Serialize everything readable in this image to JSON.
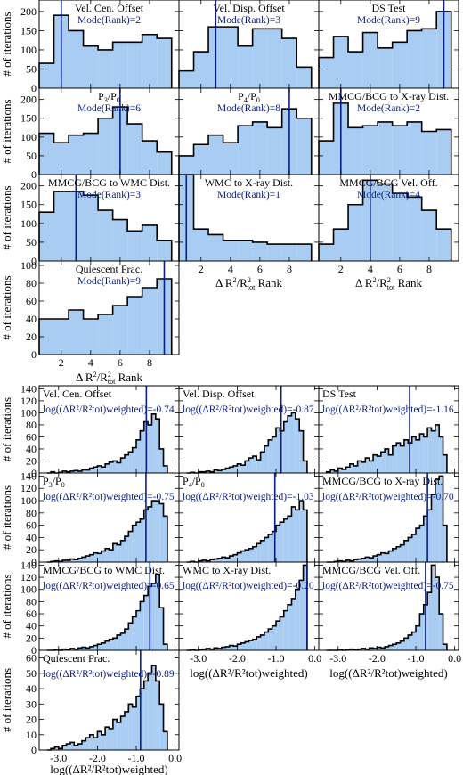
{
  "chart_data": {
    "type": "bar",
    "colors": {
      "fill": "#a9ccf2",
      "edge": "#000000",
      "marker": "#0b1f86"
    },
    "rank_figure": {
      "ylabel": "# of iterations",
      "xlabel": "Δ R²/R²tot Rank",
      "xlim": [
        0.5,
        10
      ],
      "xticks": [
        2,
        4,
        6,
        8
      ],
      "yticks": [
        0,
        50,
        100,
        150,
        200
      ],
      "ylim": [
        0,
        230
      ],
      "last_ylim": [
        0,
        105
      ],
      "last_yticks": [
        0,
        20,
        40,
        60,
        80,
        100
      ],
      "panels": [
        {
          "title": "Vel. Cen. Offset",
          "stat": "Mode(Rank)=2",
          "mode": 2,
          "values": [
            65,
            190,
            150,
            110,
            100,
            120,
            120,
            140,
            130
          ]
        },
        {
          "title": "Vel. Disp. Offset",
          "stat": "Mode(Rank)=3",
          "mode": 3,
          "values": [
            45,
            95,
            160,
            160,
            110,
            155,
            155,
            130,
            55
          ]
        },
        {
          "title": "DS Test",
          "stat": "Mode(Rank)=9",
          "mode": 9,
          "values": [
            80,
            135,
            95,
            145,
            105,
            120,
            150,
            155,
            200
          ]
        },
        {
          "title": "P3/P0",
          "stat": "Mode(Rank)=6",
          "mode": 6,
          "values": [
            110,
            85,
            105,
            110,
            150,
            180,
            135,
            90,
            60
          ]
        },
        {
          "title": "P4/P0",
          "stat": "Mode(Rank)=8",
          "mode": 8,
          "values": [
            50,
            80,
            105,
            85,
            130,
            140,
            125,
            175,
            150
          ]
        },
        {
          "title": "MMCG/BCG to X-ray Dist.",
          "stat": "Mode(Rank)=2",
          "mode": 2,
          "values": [
            90,
            190,
            125,
            130,
            140,
            130,
            140,
            115,
            120
          ]
        },
        {
          "title": "MMCG/BCG to WMC Dist.",
          "stat": "Mode(Rank)=3",
          "mode": 3,
          "values": [
            130,
            185,
            185,
            175,
            135,
            110,
            80,
            95,
            55
          ]
        },
        {
          "title": "WMC to X-ray Dist.",
          "stat": "Mode(Rank)=1",
          "mode": 1,
          "values": [
            235,
            85,
            70,
            55,
            55,
            50,
            45,
            45,
            45
          ]
        },
        {
          "title": "MMCG/BCG Vel. Off.",
          "stat": "Mode(Rank)=4",
          "mode": 4,
          "values": [
            45,
            85,
            150,
            215,
            205,
            180,
            170,
            135,
            85
          ]
        },
        {
          "title": "Quiescent Frac.",
          "stat": "Mode(Rank)=9",
          "mode": 9,
          "values": [
            40,
            40,
            50,
            40,
            45,
            55,
            65,
            75,
            85
          ]
        }
      ]
    },
    "weighted_figure": {
      "ylabel": "# of iterations",
      "xlabel": "log((ΔR²/R²tot)weighted)",
      "stat_prefix": "log((ΔR²/R²tot)weighted)=",
      "xlim": [
        -3.5,
        0.1
      ],
      "xticks": [
        -3.0,
        -2.0,
        -1.0,
        0.0
      ],
      "xtick_labels": [
        "-3.0",
        "-2.0",
        "-1.0",
        "0.0"
      ],
      "ylim": [
        0,
        145
      ],
      "yticks": [
        0,
        20,
        40,
        60,
        80,
        100,
        120,
        140
      ],
      "last_ylim": [
        0,
        65
      ],
      "last_yticks": [
        0,
        10,
        20,
        30,
        40,
        50,
        60
      ],
      "bin_start": -3.3,
      "bin_width": 0.1,
      "panels": [
        {
          "title": "Vel. Cen. Offset",
          "stat": "-0.74",
          "marker": -0.74,
          "values": [
            0,
            2,
            0,
            1,
            3,
            2,
            3,
            4,
            3,
            5,
            5,
            8,
            10,
            12,
            10,
            15,
            18,
            20,
            17,
            25,
            30,
            35,
            42,
            55,
            70,
            85,
            80,
            98,
            90,
            40,
            12
          ]
        },
        {
          "title": "Vel. Disp. Offset",
          "stat": "-0.87",
          "marker": -0.87,
          "values": [
            0,
            1,
            0,
            2,
            2,
            3,
            2,
            5,
            4,
            6,
            8,
            10,
            12,
            15,
            13,
            20,
            25,
            28,
            22,
            35,
            45,
            55,
            60,
            75,
            70,
            85,
            95,
            100,
            90,
            70,
            20
          ]
        },
        {
          "title": "DS Test",
          "stat": "-1.16",
          "marker": -1.16,
          "values": [
            2,
            5,
            3,
            8,
            6,
            10,
            15,
            12,
            20,
            18,
            25,
            20,
            30,
            28,
            35,
            40,
            30,
            45,
            50,
            45,
            55,
            50,
            60,
            55,
            65,
            60,
            75,
            70,
            80,
            60,
            30
          ]
        },
        {
          "title": "P3/P0",
          "stat": "-0.75",
          "marker": -0.75,
          "values": [
            0,
            1,
            2,
            1,
            3,
            3,
            5,
            4,
            6,
            8,
            10,
            12,
            15,
            14,
            18,
            22,
            20,
            30,
            28,
            35,
            42,
            50,
            60,
            65,
            70,
            85,
            90,
            100,
            100,
            95,
            75
          ]
        },
        {
          "title": "P4/P0",
          "stat": "-1.03",
          "marker": -1.03,
          "values": [
            0,
            1,
            0,
            2,
            3,
            2,
            4,
            5,
            6,
            8,
            7,
            10,
            12,
            15,
            18,
            20,
            22,
            25,
            30,
            35,
            40,
            45,
            50,
            60,
            65,
            70,
            75,
            90,
            85,
            100,
            85
          ]
        },
        {
          "title": "MMCG/BCG to X-ray Dist.",
          "stat": "-0.70",
          "marker": -0.7,
          "values": [
            0,
            0,
            1,
            2,
            1,
            3,
            2,
            4,
            5,
            6,
            8,
            7,
            10,
            12,
            15,
            14,
            18,
            22,
            25,
            28,
            35,
            40,
            45,
            55,
            60,
            75,
            85,
            110,
            135,
            140,
            60
          ]
        },
        {
          "title": "MMCG/BCG to WMC Dist.",
          "stat": "-0.65",
          "marker": -0.65,
          "values": [
            0,
            0,
            1,
            0,
            2,
            1,
            3,
            2,
            4,
            5,
            4,
            6,
            8,
            10,
            12,
            15,
            18,
            20,
            25,
            28,
            35,
            45,
            55,
            65,
            80,
            90,
            105,
            110,
            125,
            70,
            10
          ]
        },
        {
          "title": "WMC to X-ray Dist.",
          "stat": "-0.20",
          "marker": -0.2,
          "values": [
            0,
            1,
            0,
            1,
            2,
            3,
            2,
            4,
            3,
            5,
            6,
            8,
            7,
            10,
            12,
            14,
            16,
            18,
            22,
            25,
            30,
            35,
            40,
            48,
            55,
            65,
            75,
            85,
            100,
            115,
            140
          ]
        },
        {
          "title": "MMCG/BCG Vel. Off.",
          "stat": "-0.75",
          "marker": -0.75,
          "values": [
            0,
            0,
            0,
            1,
            0,
            1,
            2,
            1,
            2,
            3,
            2,
            4,
            3,
            5,
            4,
            6,
            8,
            10,
            12,
            15,
            20,
            25,
            30,
            40,
            60,
            75,
            95,
            140,
            120,
            60,
            10
          ]
        },
        {
          "title": "Quiescent Frac.",
          "stat": "-0.89",
          "marker": -0.89,
          "values": [
            0,
            1,
            2,
            1,
            3,
            4,
            5,
            3,
            4,
            6,
            8,
            10,
            8,
            12,
            10,
            15,
            14,
            20,
            18,
            22,
            25,
            30,
            28,
            35,
            40,
            45,
            50,
            55,
            45,
            30,
            12
          ]
        }
      ]
    }
  }
}
